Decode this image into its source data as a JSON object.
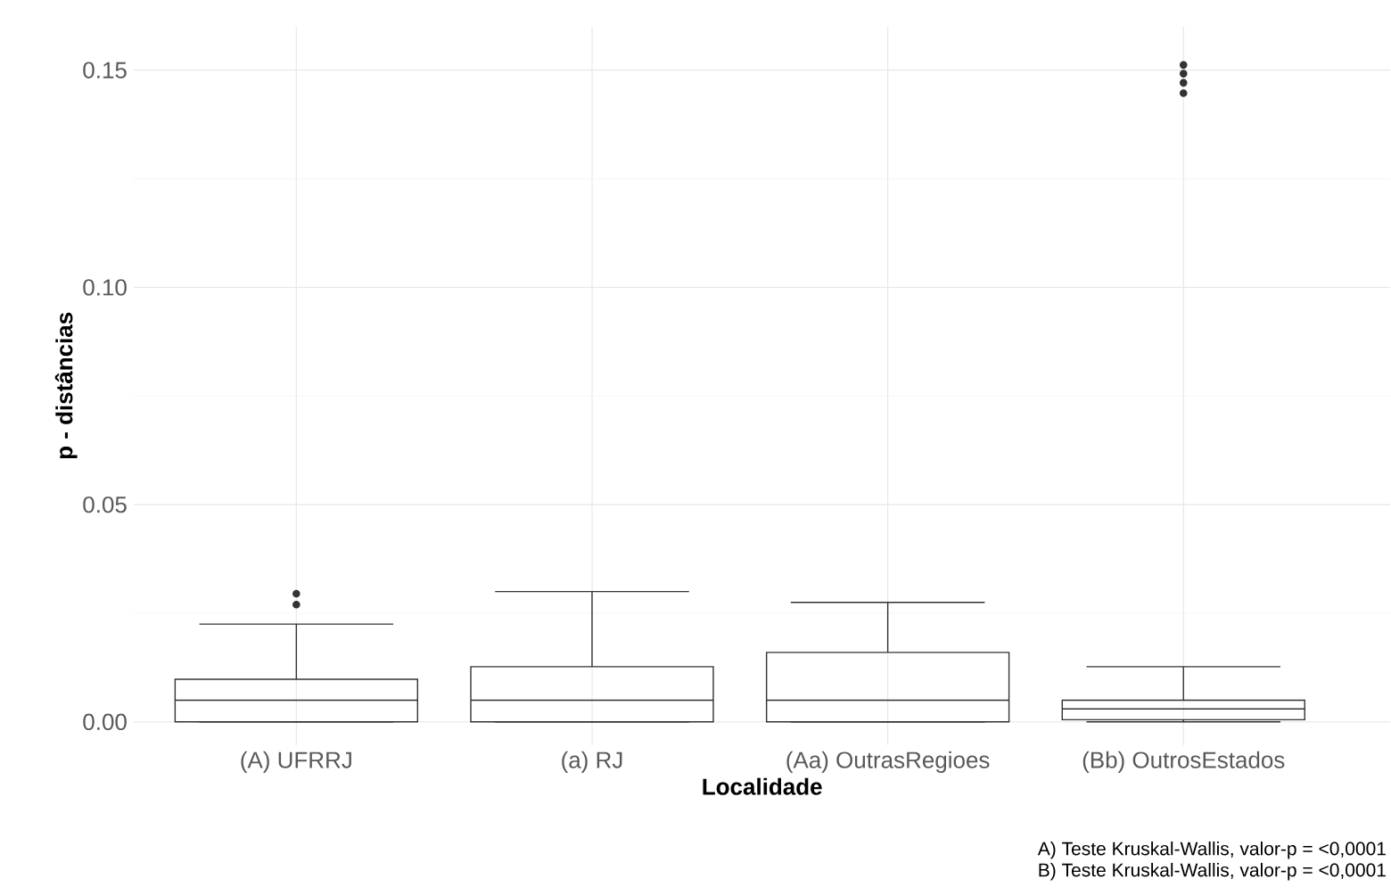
{
  "chart_data": {
    "type": "box",
    "xlabel": "Localidade",
    "ylabel": "p - distâncias",
    "categories": [
      "(A) UFRRJ",
      "(a) RJ",
      "(Aa) OutrasRegioes",
      "(Bb) OutrosEstados"
    ],
    "boxes": [
      {
        "low": 0,
        "q1": 0,
        "median": 0.005,
        "q3": 0.0098,
        "high": 0.0225,
        "outliers": [
          0.027,
          0.0295
        ]
      },
      {
        "low": 0,
        "q1": 0,
        "median": 0.005,
        "q3": 0.0127,
        "high": 0.03
      },
      {
        "low": 0,
        "q1": 0,
        "median": 0.005,
        "q3": 0.016,
        "high": 0.0275
      },
      {
        "low": 0,
        "q1": 0.0005,
        "median": 0.003,
        "q3": 0.005,
        "high": 0.0127,
        "outliers": [
          0.1447,
          0.1471,
          0.1492,
          0.1512
        ]
      }
    ],
    "ylim": [
      -0.0053,
      0.16
    ],
    "yticks": [
      {
        "value": 0,
        "label": "0.00"
      },
      {
        "value": 0.05,
        "label": "0.05"
      },
      {
        "value": 0.1,
        "label": "0.10"
      },
      {
        "value": 0.15,
        "label": "0.15"
      }
    ],
    "grid": true,
    "annotations": [
      "A) Teste Kruskal-Wallis, valor-p = <0,0001",
      "B) Teste Kruskal-Wallis, valor-p = <0,0001"
    ]
  }
}
